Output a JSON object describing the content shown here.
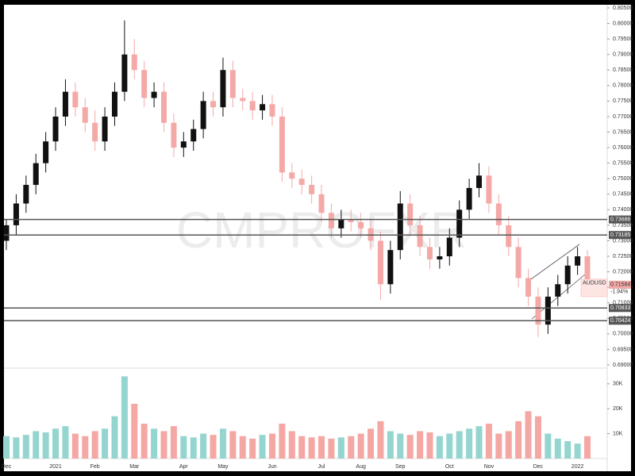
{
  "chart_data": {
    "type": "candlestick",
    "watermark": "CMPROFXR",
    "symbol": "AUDUSD",
    "last_price": 0.71584,
    "change": "-1.94%",
    "up_color": "#111111",
    "down_color": "#f4a9a7",
    "volume_up_color": "#94d5cf",
    "volume_down_color": "#f4a7a3",
    "level_color": "#555555",
    "categories": [
      "Dec",
      null,
      null,
      null,
      null,
      "2021",
      null,
      null,
      null,
      "Feb",
      null,
      null,
      null,
      "Mar",
      null,
      null,
      null,
      null,
      "Apr",
      null,
      null,
      null,
      "May",
      null,
      null,
      null,
      null,
      "Jun",
      null,
      null,
      null,
      null,
      "Jul",
      null,
      null,
      null,
      "Aug",
      null,
      null,
      null,
      "Sep",
      null,
      null,
      null,
      null,
      "Oct",
      null,
      null,
      null,
      "Nov",
      null,
      null,
      null,
      null,
      "Dec",
      null,
      null,
      null,
      "2022",
      null
    ],
    "open": [
      0.73,
      0.735,
      0.742,
      0.748,
      0.755,
      0.762,
      0.77,
      0.778,
      0.773,
      0.768,
      0.762,
      0.77,
      0.778,
      0.79,
      0.785,
      0.776,
      0.778,
      0.768,
      0.76,
      0.762,
      0.766,
      0.775,
      0.773,
      0.785,
      0.776,
      0.775,
      0.772,
      0.774,
      0.77,
      0.752,
      0.75,
      0.748,
      0.745,
      0.739,
      0.734,
      0.737,
      0.736,
      0.734,
      0.73,
      0.716,
      0.727,
      0.742,
      0.735,
      0.728,
      0.724,
      0.725,
      0.731,
      0.74,
      0.747,
      0.751,
      0.742,
      0.735,
      0.728,
      0.718,
      0.712,
      0.703,
      0.712,
      0.716,
      0.722,
      0.725
    ],
    "high": [
      0.737,
      0.745,
      0.751,
      0.758,
      0.765,
      0.773,
      0.782,
      0.781,
      0.776,
      0.772,
      0.773,
      0.781,
      0.801,
      0.795,
      0.788,
      0.781,
      0.781,
      0.771,
      0.765,
      0.769,
      0.778,
      0.778,
      0.789,
      0.788,
      0.779,
      0.778,
      0.777,
      0.777,
      0.773,
      0.755,
      0.753,
      0.751,
      0.748,
      0.742,
      0.74,
      0.74,
      0.739,
      0.737,
      0.733,
      0.73,
      0.746,
      0.745,
      0.738,
      0.731,
      0.728,
      0.734,
      0.743,
      0.75,
      0.755,
      0.754,
      0.745,
      0.738,
      0.731,
      0.721,
      0.715,
      0.715,
      0.719,
      0.725,
      0.728,
      0.727
    ],
    "low": [
      0.727,
      0.732,
      0.739,
      0.745,
      0.752,
      0.759,
      0.767,
      0.77,
      0.765,
      0.759,
      0.759,
      0.767,
      0.775,
      0.782,
      0.773,
      0.773,
      0.765,
      0.757,
      0.757,
      0.759,
      0.763,
      0.77,
      0.77,
      0.773,
      0.772,
      0.769,
      0.769,
      0.767,
      0.749,
      0.747,
      0.745,
      0.742,
      0.736,
      0.731,
      0.731,
      0.733,
      0.731,
      0.727,
      0.711,
      0.713,
      0.724,
      0.732,
      0.725,
      0.721,
      0.721,
      0.722,
      0.728,
      0.737,
      0.744,
      0.739,
      0.732,
      0.725,
      0.715,
      0.709,
      0.699,
      0.7,
      0.709,
      0.713,
      0.719,
      0.714
    ],
    "close": [
      0.735,
      0.742,
      0.748,
      0.755,
      0.762,
      0.77,
      0.778,
      0.773,
      0.768,
      0.762,
      0.77,
      0.778,
      0.79,
      0.785,
      0.776,
      0.778,
      0.768,
      0.76,
      0.762,
      0.766,
      0.775,
      0.773,
      0.785,
      0.776,
      0.775,
      0.772,
      0.774,
      0.77,
      0.752,
      0.75,
      0.748,
      0.745,
      0.739,
      0.734,
      0.737,
      0.736,
      0.734,
      0.73,
      0.716,
      0.727,
      0.742,
      0.735,
      0.728,
      0.724,
      0.725,
      0.731,
      0.74,
      0.747,
      0.751,
      0.742,
      0.735,
      0.728,
      0.718,
      0.712,
      0.703,
      0.712,
      0.716,
      0.722,
      0.725,
      0.71584
    ],
    "ylim": [
      0.69,
      0.805
    ],
    "yticks": [
      {
        "value": 0.69,
        "label": "0.69000"
      },
      {
        "value": 0.695,
        "label": "0.69500"
      },
      {
        "value": 0.7,
        "label": "0.70000"
      },
      {
        "value": 0.705,
        "label": "0.70500"
      },
      {
        "value": 0.71,
        "label": "0.71000"
      },
      {
        "value": 0.715,
        "label": "0.71500"
      },
      {
        "value": 0.72,
        "label": "0.72000"
      },
      {
        "value": 0.725,
        "label": "0.72500"
      },
      {
        "value": 0.73,
        "label": "0.73000"
      },
      {
        "value": 0.735,
        "label": "0.73500"
      },
      {
        "value": 0.74,
        "label": "0.74000"
      },
      {
        "value": 0.745,
        "label": "0.74500"
      },
      {
        "value": 0.75,
        "label": "0.75000"
      },
      {
        "value": 0.755,
        "label": "0.75500"
      },
      {
        "value": 0.76,
        "label": "0.76000"
      },
      {
        "value": 0.765,
        "label": "0.76500"
      },
      {
        "value": 0.77,
        "label": "0.77000"
      },
      {
        "value": 0.775,
        "label": "0.77500"
      },
      {
        "value": 0.78,
        "label": "0.78000"
      },
      {
        "value": 0.785,
        "label": "0.78500"
      },
      {
        "value": 0.79,
        "label": "0.79000"
      },
      {
        "value": 0.795,
        "label": "0.79500"
      },
      {
        "value": 0.8,
        "label": "0.80000"
      },
      {
        "value": 0.805,
        "label": "0.80500"
      }
    ],
    "levels": [
      0.73686,
      0.73185,
      0.70833,
      0.70424
    ],
    "volume_values": [
      9000,
      8500,
      9500,
      11000,
      10500,
      12000,
      13000,
      10000,
      9000,
      11000,
      12000,
      17000,
      33000,
      22000,
      14000,
      12000,
      11000,
      13000,
      9000,
      8500,
      10000,
      9500,
      12000,
      11000,
      9000,
      8000,
      9500,
      10000,
      14000,
      11000,
      9000,
      8500,
      9000,
      8000,
      8500,
      9000,
      10000,
      12000,
      15000,
      11000,
      10000,
      9500,
      11000,
      10500,
      9000,
      10000,
      11000,
      12000,
      13000,
      14000,
      10000,
      11000,
      15000,
      19000,
      17000,
      10000,
      8000,
      7000,
      6000,
      9000
    ],
    "volume_ylim": [
      0,
      36000
    ],
    "volume_yticks": [
      {
        "value": 10000,
        "label": "10K"
      },
      {
        "value": 20000,
        "label": "20K"
      },
      {
        "value": 30000,
        "label": "30K"
      }
    ]
  }
}
